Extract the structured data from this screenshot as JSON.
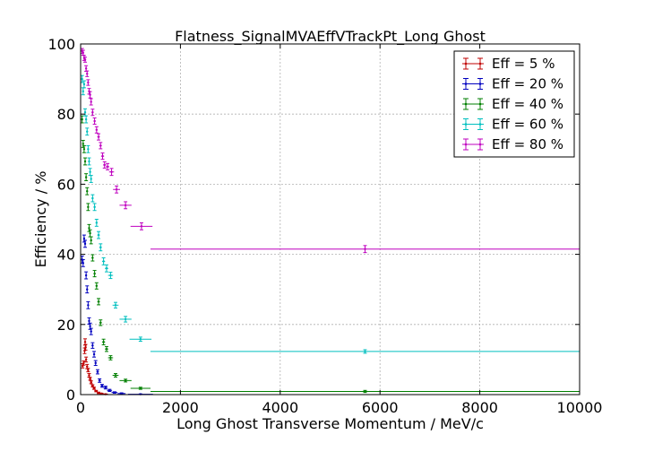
{
  "chart_data": {
    "type": "scatter",
    "title": "Flatness_SignalMVAEffVTrackPt_Long Ghost",
    "xlabel": "Long Ghost Transverse Momentum / MeV/c",
    "ylabel": "Efficiency / %",
    "xlim": [
      0,
      10000
    ],
    "ylim": [
      0,
      100
    ],
    "xticks": [
      "0",
      "2000",
      "4000",
      "6000",
      "8000",
      "10000"
    ],
    "yticks": [
      "0",
      "20",
      "40",
      "60",
      "80",
      "100"
    ],
    "grid": true,
    "legend_position": "top-right",
    "series": [
      {
        "name": "Eff = 5 %",
        "color": "#bf0000",
        "points": [
          [
            40,
            8.2,
            20,
            0.6
          ],
          [
            60,
            9.0,
            20,
            0.6
          ],
          [
            80,
            12.5,
            20,
            0.8
          ],
          [
            90,
            15.0,
            20,
            0.9
          ],
          [
            100,
            13.5,
            20,
            0.8
          ],
          [
            110,
            10.0,
            20,
            0.7
          ],
          [
            130,
            8.0,
            20,
            0.6
          ],
          [
            150,
            7.0,
            20,
            0.5
          ],
          [
            170,
            5.5,
            20,
            0.5
          ],
          [
            190,
            4.5,
            20,
            0.4
          ],
          [
            210,
            3.5,
            20,
            0.4
          ],
          [
            240,
            2.5,
            25,
            0.3
          ],
          [
            270,
            1.8,
            25,
            0.3
          ],
          [
            310,
            1.0,
            30,
            0.2
          ],
          [
            360,
            0.5,
            30,
            0.2
          ],
          [
            420,
            0.3,
            40,
            0.1
          ],
          [
            500,
            0.1,
            50,
            0.1
          ]
        ]
      },
      {
        "name": "Eff = 20 %",
        "color": "#0000bf",
        "points": [
          [
            30,
            38.5,
            15,
            1.0
          ],
          [
            50,
            37.5,
            15,
            1.0
          ],
          [
            70,
            44.5,
            15,
            1.0
          ],
          [
            90,
            43.0,
            15,
            1.0
          ],
          [
            110,
            34.0,
            15,
            1.0
          ],
          [
            130,
            30.0,
            15,
            1.0
          ],
          [
            150,
            25.5,
            15,
            1.0
          ],
          [
            170,
            21.0,
            15,
            0.9
          ],
          [
            190,
            19.5,
            15,
            0.9
          ],
          [
            210,
            18.0,
            15,
            0.9
          ],
          [
            240,
            14.0,
            20,
            0.8
          ],
          [
            270,
            11.5,
            20,
            0.8
          ],
          [
            300,
            9.0,
            20,
            0.7
          ],
          [
            340,
            6.5,
            25,
            0.6
          ],
          [
            380,
            4.0,
            25,
            0.5
          ],
          [
            430,
            2.5,
            30,
            0.4
          ],
          [
            500,
            2.0,
            40,
            0.4
          ],
          [
            580,
            1.2,
            50,
            0.3
          ],
          [
            680,
            0.6,
            60,
            0.2
          ],
          [
            820,
            0.3,
            80,
            0.2
          ],
          [
            1200,
            0.1,
            250,
            0.1
          ]
        ]
      },
      {
        "name": "Eff = 40 %",
        "color": "#007f00",
        "points": [
          [
            30,
            78.5,
            15,
            1.0
          ],
          [
            50,
            71.5,
            15,
            1.0
          ],
          [
            70,
            70.0,
            15,
            1.0
          ],
          [
            90,
            66.5,
            15,
            1.0
          ],
          [
            110,
            62.0,
            15,
            1.0
          ],
          [
            130,
            58.0,
            15,
            1.0
          ],
          [
            150,
            53.5,
            15,
            1.0
          ],
          [
            170,
            47.5,
            15,
            1.0
          ],
          [
            190,
            46.0,
            15,
            1.0
          ],
          [
            210,
            44.0,
            15,
            1.0
          ],
          [
            240,
            39.0,
            20,
            0.9
          ],
          [
            280,
            34.5,
            20,
            0.9
          ],
          [
            320,
            31.0,
            20,
            0.9
          ],
          [
            360,
            26.5,
            25,
            0.9
          ],
          [
            400,
            20.5,
            25,
            0.8
          ],
          [
            460,
            15.0,
            30,
            0.8
          ],
          [
            520,
            13.0,
            35,
            0.7
          ],
          [
            600,
            10.5,
            50,
            0.6
          ],
          [
            700,
            5.5,
            60,
            0.5
          ],
          [
            900,
            4.0,
            120,
            0.4
          ],
          [
            1200,
            1.8,
            200,
            0.3
          ],
          [
            5700,
            0.9,
            4300,
            0.3
          ]
        ]
      },
      {
        "name": "Eff = 60 %",
        "color": "#00bfbf",
        "points": [
          [
            30,
            90.0,
            15,
            1.0
          ],
          [
            50,
            86.5,
            15,
            1.0
          ],
          [
            70,
            88.5,
            15,
            1.0
          ],
          [
            90,
            80.5,
            15,
            1.0
          ],
          [
            110,
            78.5,
            15,
            1.0
          ],
          [
            130,
            75.0,
            15,
            1.0
          ],
          [
            150,
            70.0,
            15,
            1.0
          ],
          [
            170,
            66.5,
            15,
            1.0
          ],
          [
            190,
            63.5,
            15,
            1.0
          ],
          [
            210,
            61.5,
            15,
            1.0
          ],
          [
            240,
            56.0,
            20,
            1.0
          ],
          [
            280,
            53.5,
            20,
            1.0
          ],
          [
            320,
            49.0,
            20,
            1.0
          ],
          [
            360,
            45.5,
            25,
            1.0
          ],
          [
            400,
            42.0,
            25,
            1.0
          ],
          [
            460,
            38.0,
            30,
            1.0
          ],
          [
            520,
            36.0,
            35,
            1.0
          ],
          [
            600,
            34.0,
            50,
            0.9
          ],
          [
            700,
            25.5,
            60,
            0.8
          ],
          [
            900,
            21.5,
            120,
            0.8
          ],
          [
            1200,
            15.8,
            220,
            0.6
          ],
          [
            5700,
            12.3,
            4300,
            0.5
          ]
        ]
      },
      {
        "name": "Eff = 80 %",
        "color": "#bf00bf",
        "points": [
          [
            30,
            98.0,
            15,
            0.7
          ],
          [
            50,
            97.5,
            15,
            0.7
          ],
          [
            70,
            96.0,
            15,
            0.7
          ],
          [
            90,
            95.5,
            15,
            0.7
          ],
          [
            110,
            93.0,
            15,
            0.8
          ],
          [
            130,
            91.5,
            15,
            0.8
          ],
          [
            150,
            89.0,
            15,
            0.8
          ],
          [
            170,
            86.5,
            15,
            0.8
          ],
          [
            190,
            85.5,
            15,
            0.9
          ],
          [
            210,
            83.5,
            15,
            0.9
          ],
          [
            240,
            80.5,
            20,
            0.9
          ],
          [
            280,
            78.0,
            20,
            0.9
          ],
          [
            320,
            75.5,
            20,
            0.9
          ],
          [
            360,
            73.5,
            25,
            0.9
          ],
          [
            400,
            71.0,
            25,
            0.9
          ],
          [
            440,
            68.0,
            30,
            0.9
          ],
          [
            480,
            65.5,
            30,
            0.9
          ],
          [
            540,
            65.0,
            35,
            0.9
          ],
          [
            620,
            63.5,
            50,
            1.0
          ],
          [
            720,
            58.5,
            70,
            1.0
          ],
          [
            900,
            54.0,
            120,
            1.0
          ],
          [
            1220,
            48.0,
            220,
            1.0
          ],
          [
            5700,
            41.5,
            4300,
            1.0
          ]
        ]
      }
    ]
  }
}
